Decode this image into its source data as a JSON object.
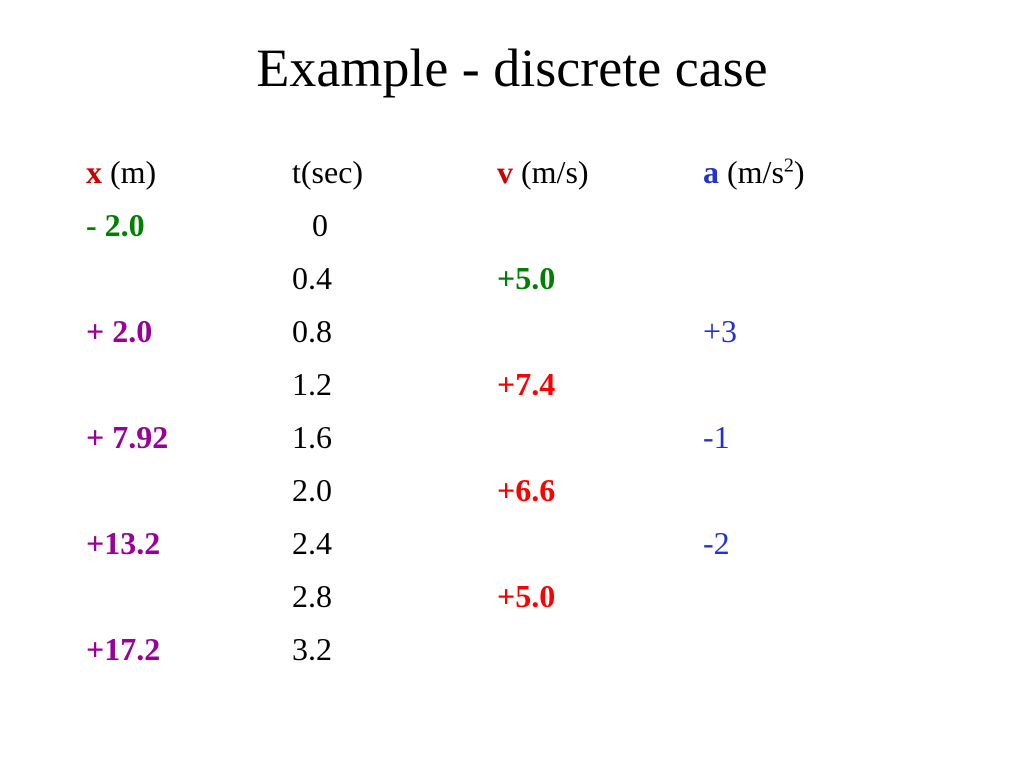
{
  "title": "Example - discrete case",
  "colors": {
    "x_var": "#cc0000",
    "v_var": "#cc0000",
    "a_var": "#2233cc",
    "green": "#008000",
    "purple": "#990099",
    "red": "#ff0000",
    "blue": "#2233cc"
  },
  "headers": {
    "x_symbol": "x",
    "x_unit": " (m)",
    "t_label": "t(sec)",
    "v_symbol": "v",
    "v_unit": " (m/s)",
    "a_symbol": "a",
    "a_unit_pre": " (m/s",
    "a_unit_sup": "2",
    "a_unit_post": ")"
  },
  "rows": [
    {
      "x": "- 2.0",
      "t": "0",
      "v": "",
      "a": ""
    },
    {
      "x": "",
      "t": "0.4",
      "v": "+5.0",
      "a": ""
    },
    {
      "x": "+ 2.0",
      "t": "0.8",
      "v": "",
      "a": "+3"
    },
    {
      "x": "",
      "t": "1.2",
      "v": "+7.4",
      "a": ""
    },
    {
      "x": "+ 7.92",
      "t": "1.6",
      "v": "",
      "a": "-1"
    },
    {
      "x": "",
      "t": "2.0",
      "v": "+6.6",
      "a": ""
    },
    {
      "x": "+13.2",
      "t": "2.4",
      "v": "",
      "a": "-2"
    },
    {
      "x": "",
      "t": "2.8",
      "v": "+5.0",
      "a": ""
    },
    {
      "x": "+17.2",
      "t": "3.2",
      "v": "",
      "a": ""
    }
  ]
}
